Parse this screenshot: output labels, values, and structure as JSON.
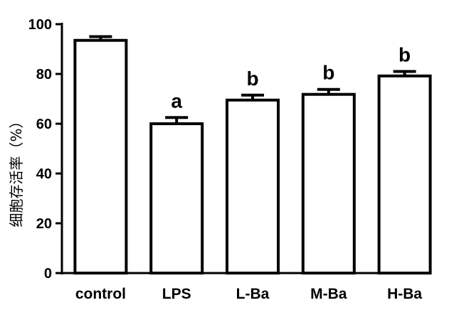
{
  "chart_data": {
    "type": "bar",
    "title": "",
    "xlabel": "",
    "ylabel": "细胞存活率（%）",
    "categories": [
      "control",
      "LPS",
      "L-Ba",
      "M-Ba",
      "H-Ba"
    ],
    "values": [
      93.5,
      60.0,
      69.5,
      71.8,
      79.2
    ],
    "error": [
      1.5,
      2.5,
      2.0,
      2.0,
      1.8
    ],
    "significance": [
      "",
      "a",
      "b",
      "b",
      "b"
    ],
    "ylim": [
      0,
      100
    ],
    "yticks": [
      "0",
      "20",
      "40",
      "60",
      "80",
      "100"
    ],
    "grid": false,
    "legend": "none",
    "colors": {
      "bar_fill": "#ffffff",
      "bar_stroke": "#000000",
      "axis": "#000000"
    }
  }
}
